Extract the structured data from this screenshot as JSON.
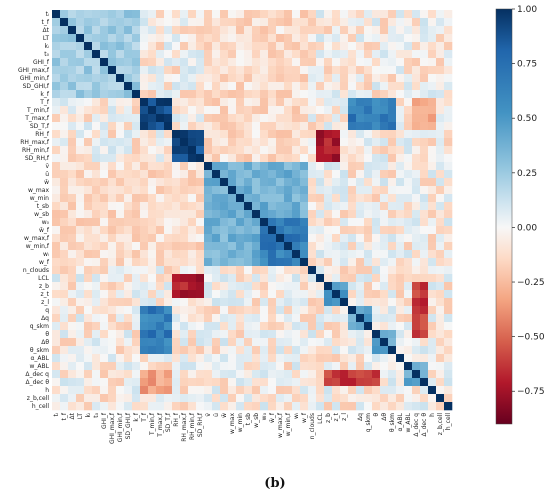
{
  "caption": "(b)",
  "chart_data": {
    "type": "heatmap",
    "title": "",
    "xlabel": "",
    "ylabel": "",
    "value_range": [
      -0.9,
      1.0
    ],
    "colorbar_ticks": [
      "1.00",
      "0.75",
      "0.50",
      "0.25",
      "0.00",
      "−0.25",
      "−0.50",
      "−0.75"
    ],
    "colorbar_tick_values": [
      1.0,
      0.75,
      0.5,
      0.25,
      0.0,
      -0.25,
      -0.5,
      -0.75
    ],
    "colormap": "RdBu",
    "row_labels": [
      "tᵢ",
      "t_f",
      "Δt",
      "LT",
      "kᵢ",
      "t₀",
      "GHI_f",
      "GHI_max,f",
      "GHI_min,f",
      "SD_GHI,f",
      "k_f",
      "T_f",
      "T_min,f",
      "T_max,f",
      "SD_T,f",
      "RH_f",
      "RH_max,f",
      "RH_min,f",
      "SD_RH,f",
      "v̄",
      "ū",
      "w̄",
      "w_max",
      "w_min",
      "t_sb",
      "w_sb",
      "w₀",
      "w̄_f",
      "w_max,f",
      "w_min,f",
      "wᵢ",
      "w_f",
      "n_clouds",
      "LCL",
      "z_b",
      "z_t",
      "z_l",
      "q",
      "Δq",
      "q_skm",
      "θ",
      "Δθ",
      "θ_skm",
      "α_ABL",
      "w_ABL",
      "Δ_dec q",
      "Δ_dec θ",
      "h",
      "z_b,cell",
      "h_cell"
    ],
    "col_labels": [
      "tᵢ",
      "t_f",
      "Δt",
      "LT",
      "kᵢ",
      "t₀",
      "GHI_f",
      "GHI_max,f",
      "GHI_min,f",
      "SD_GHI,f",
      "k_f",
      "T_f",
      "T_min,f",
      "T_max,f",
      "SD_T,f",
      "RH_f",
      "RH_max,f",
      "RH_min,f",
      "SD_RH,f",
      "v̄",
      "ū",
      "w̄",
      "w_max",
      "w_min",
      "t_sb",
      "w_sb",
      "w₀",
      "w̄_f",
      "w_max,f",
      "w_min,f",
      "wᵢ",
      "w_f",
      "n_clouds",
      "LCL",
      "z_b",
      "z_t",
      "z_l",
      "q",
      "Δq",
      "q_skm",
      "θ",
      "Δθ",
      "θ_skm",
      "α_ABL",
      "w_ABL",
      "Δ_dec q",
      "Δ_dec θ",
      "h",
      "z_b,cell",
      "h_cell"
    ],
    "x_tick_labels_shown": [
      "tᵢ",
      "t_f",
      "Δt",
      "LT",
      "kᵢ",
      "t₀",
      "GHI_f",
      "GHI_max,f",
      "GHI_min,f",
      "SD_GHI,f",
      "k_f",
      "T_f",
      "T_min,f",
      "T_max,f",
      "SD_T,f",
      "RH_f",
      "RH_max,f",
      "RH_min,f",
      "SD_RH,f",
      "v̄",
      "ū",
      "w̄",
      "w_max",
      "w_min",
      "t_sb",
      "w_sb",
      "w₀",
      "w̄_f",
      "w_max,f",
      "w_min,f",
      "wᵢ",
      "w_f",
      "n_clouds",
      "LCL",
      "z_b",
      "z_t",
      "z_l",
      "Δq",
      "q_skm",
      "θ",
      "Δθ",
      "θ_skm",
      "α_ABL",
      "w_ABL",
      "Δ_dec q",
      "Δ_dec θ",
      "h",
      "z_b,cell",
      "h_cell"
    ],
    "blocks": [
      {
        "rows": [
          0,
          10
        ],
        "cols": [
          0,
          10
        ],
        "value": 0.3
      },
      {
        "rows": [
          11,
          14
        ],
        "cols": [
          11,
          14
        ],
        "value": 0.9
      },
      {
        "rows": [
          15,
          18
        ],
        "cols": [
          15,
          18
        ],
        "value": 0.9
      },
      {
        "rows": [
          19,
          31
        ],
        "cols": [
          19,
          31
        ],
        "value": 0.45
      },
      {
        "rows": [
          26,
          31
        ],
        "cols": [
          26,
          31
        ],
        "value": 0.7
      },
      {
        "rows": [
          34,
          36
        ],
        "cols": [
          34,
          36
        ],
        "value": 0.6
      },
      {
        "rows": [
          37,
          39
        ],
        "cols": [
          37,
          39
        ],
        "value": 0.5
      },
      {
        "rows": [
          40,
          42
        ],
        "cols": [
          40,
          42
        ],
        "value": 0.5
      },
      {
        "rows": [
          44,
          46
        ],
        "cols": [
          44,
          46
        ],
        "value": 0.5
      },
      {
        "rows": [
          11,
          14
        ],
        "cols": [
          37,
          42
        ],
        "value": 0.7
      },
      {
        "rows": [
          11,
          14
        ],
        "cols": [
          45,
          47
        ],
        "value": -0.3
      },
      {
        "rows": [
          15,
          18
        ],
        "cols": [
          33,
          35
        ],
        "value": -0.7
      },
      {
        "rows": [
          33,
          35
        ],
        "cols": [
          15,
          18
        ],
        "value": -0.7
      },
      {
        "rows": [
          37,
          42
        ],
        "cols": [
          11,
          14
        ],
        "value": 0.7
      },
      {
        "rows": [
          45,
          47
        ],
        "cols": [
          11,
          14
        ],
        "value": -0.3
      },
      {
        "rows": [
          0,
          18
        ],
        "cols": [
          19,
          31
        ],
        "value": -0.1
      },
      {
        "rows": [
          19,
          31
        ],
        "cols": [
          0,
          18
        ],
        "value": -0.1
      },
      {
        "rows": [
          45,
          46
        ],
        "cols": [
          34,
          40
        ],
        "value": -0.6
      },
      {
        "rows": [
          34,
          40
        ],
        "cols": [
          45,
          46
        ],
        "value": -0.6
      }
    ]
  }
}
